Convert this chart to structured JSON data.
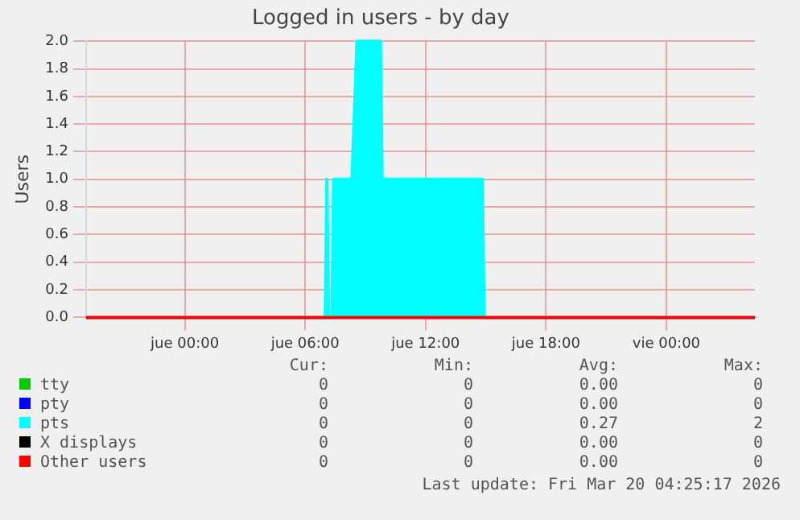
{
  "chart_data": {
    "type": "area",
    "title": "Logged in users - by day",
    "ylabel": "Users",
    "x": [
      "2026-03-18T19:05",
      "2026-03-19T07:00",
      "2026-03-19T07:05",
      "2026-03-19T07:10",
      "2026-03-19T07:20",
      "2026-03-19T07:25",
      "2026-03-19T08:20",
      "2026-03-19T08:35",
      "2026-03-19T09:45",
      "2026-03-19T09:50",
      "2026-03-19T14:50",
      "2026-03-19T14:55",
      "2026-03-20T04:25"
    ],
    "series": [
      {
        "name": "tty",
        "type": "line",
        "color": "#00cc00",
        "values": [
          null,
          null,
          null,
          null,
          null,
          null,
          null,
          null,
          null,
          null,
          null,
          null,
          null
        ]
      },
      {
        "name": "pty",
        "type": "line",
        "color": "#0000ff",
        "values": [
          null,
          null,
          null,
          null,
          null,
          null,
          null,
          null,
          null,
          null,
          null,
          null,
          null
        ]
      },
      {
        "name": "pts",
        "color": "#00ffff",
        "values": [
          0,
          0,
          1,
          0,
          0,
          1,
          1,
          2,
          2,
          1,
          1,
          0,
          0
        ]
      },
      {
        "name": "X displays",
        "type": "line",
        "color": "#000000",
        "values": [
          null,
          null,
          null,
          null,
          null,
          null,
          null,
          null,
          null,
          null,
          null,
          null,
          null
        ]
      },
      {
        "name": "Other users",
        "type": "line",
        "color": "#ff0000",
        "values": [
          0,
          0,
          0,
          0,
          0,
          0,
          0,
          0,
          0,
          0,
          0,
          0,
          0
        ]
      }
    ],
    "xlim": [
      "2026-03-18T19:05",
      "2026-03-20T04:25"
    ],
    "xticks": [
      {
        "value": "2026-03-19T00:00",
        "label": "jue 00:00"
      },
      {
        "value": "2026-03-19T06:00",
        "label": "jue 06:00"
      },
      {
        "value": "2026-03-19T12:00",
        "label": "jue 12:00"
      },
      {
        "value": "2026-03-19T18:00",
        "label": "jue 18:00"
      },
      {
        "value": "2026-03-20T00:00",
        "label": "vie 00:00"
      }
    ],
    "ylim": [
      0,
      2
    ],
    "yticks": [
      {
        "value": 0,
        "label": "0.0"
      },
      {
        "value": 0.2,
        "label": "0.2"
      },
      {
        "value": 0.4,
        "label": "0.4"
      },
      {
        "value": 0.6,
        "label": "0.6"
      },
      {
        "value": 0.8,
        "label": "0.8"
      },
      {
        "value": 1,
        "label": "1.0"
      },
      {
        "value": 1.2,
        "label": "1.2"
      },
      {
        "value": 1.4,
        "label": "1.4"
      },
      {
        "value": 1.6,
        "label": "1.6"
      },
      {
        "value": 1.8,
        "label": "1.8"
      },
      {
        "value": 2,
        "label": "2.0"
      }
    ],
    "grid": true,
    "legend": "bottom",
    "annotations": [
      "Cur:",
      "Min:",
      "Avg:",
      "Max:",
      "0",
      "0",
      "0.00",
      "0",
      "0",
      "0",
      "0.00",
      "0",
      "0",
      "0",
      "0.27",
      "2",
      "0",
      "0",
      "0.00",
      "0",
      "0",
      "0",
      "0.00",
      "0",
      "Last update: Fri Mar 20 04:25:17 2026"
    ]
  }
}
